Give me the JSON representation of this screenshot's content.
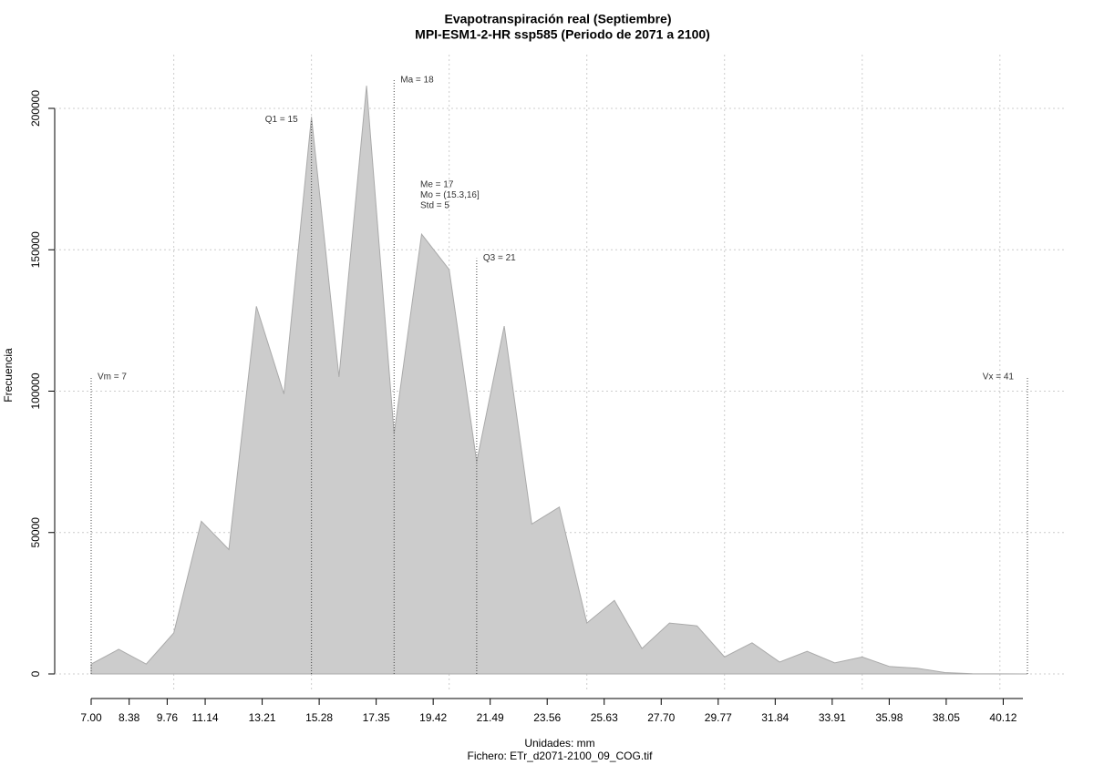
{
  "chart_data": {
    "type": "area",
    "title": "Evapotranspiración real (Septiembre)",
    "subtitle": "MPI-ESM1-2-HR ssp585 (Periodo de 2071 a 2100)",
    "xlabel": "Unidades: mm",
    "caption": "Fichero: ETr_d2071-2100_09_COG.tif",
    "ylabel": "Frecuencia",
    "color": "#cccccc",
    "x": [
      7,
      8,
      9,
      10,
      11,
      12,
      13,
      14,
      15,
      16,
      17,
      18,
      19,
      20,
      21,
      22,
      23,
      24,
      25,
      26,
      27,
      28,
      29,
      30,
      31,
      32,
      33,
      34,
      35,
      36,
      37,
      38,
      39,
      40,
      41
    ],
    "values": [
      3500,
      8700,
      3500,
      14500,
      54000,
      44000,
      130000,
      99000,
      197000,
      105000,
      208000,
      85000,
      155500,
      143000,
      75000,
      123000,
      53000,
      59000,
      18000,
      26000,
      9000,
      18000,
      17000,
      6000,
      11000,
      4200,
      8000,
      3900,
      6000,
      2600,
      2000,
      500,
      100,
      50,
      0
    ],
    "xlim": [
      7,
      41
    ],
    "ylim": [
      0,
      200000
    ],
    "xticks": [
      {
        "value": 7,
        "label": "7.00"
      },
      8.38,
      9.76,
      11.14,
      13.21,
      15.28,
      17.35,
      19.42,
      21.49,
      23.56,
      25.63,
      {
        "value": 27.7,
        "label": "27.70"
      },
      29.77,
      31.84,
      33.91,
      35.98,
      38.05,
      40.12
    ],
    "yticks": [
      0,
      50000,
      100000,
      150000,
      200000
    ],
    "xgrid": [
      10,
      15,
      20,
      25,
      30,
      35,
      40
    ],
    "grid": true,
    "annotations": [
      {
        "text": "Vm = 7",
        "x": 7,
        "y": 105000,
        "side": "right"
      },
      {
        "text": "Q1 = 15",
        "x": 15,
        "y": 196000,
        "side": "left"
      },
      {
        "text": "Ma = 18",
        "x": 18,
        "y": 210000,
        "side": "right"
      },
      {
        "text": "Q3 = 21",
        "x": 21,
        "y": 147000,
        "side": "right"
      },
      {
        "text": "Vx = 41",
        "x": 41,
        "y": 105000,
        "side": "left"
      }
    ],
    "stats": [
      "Me = 17",
      "Mo = (15.3,16]",
      "Std = 5"
    ]
  }
}
